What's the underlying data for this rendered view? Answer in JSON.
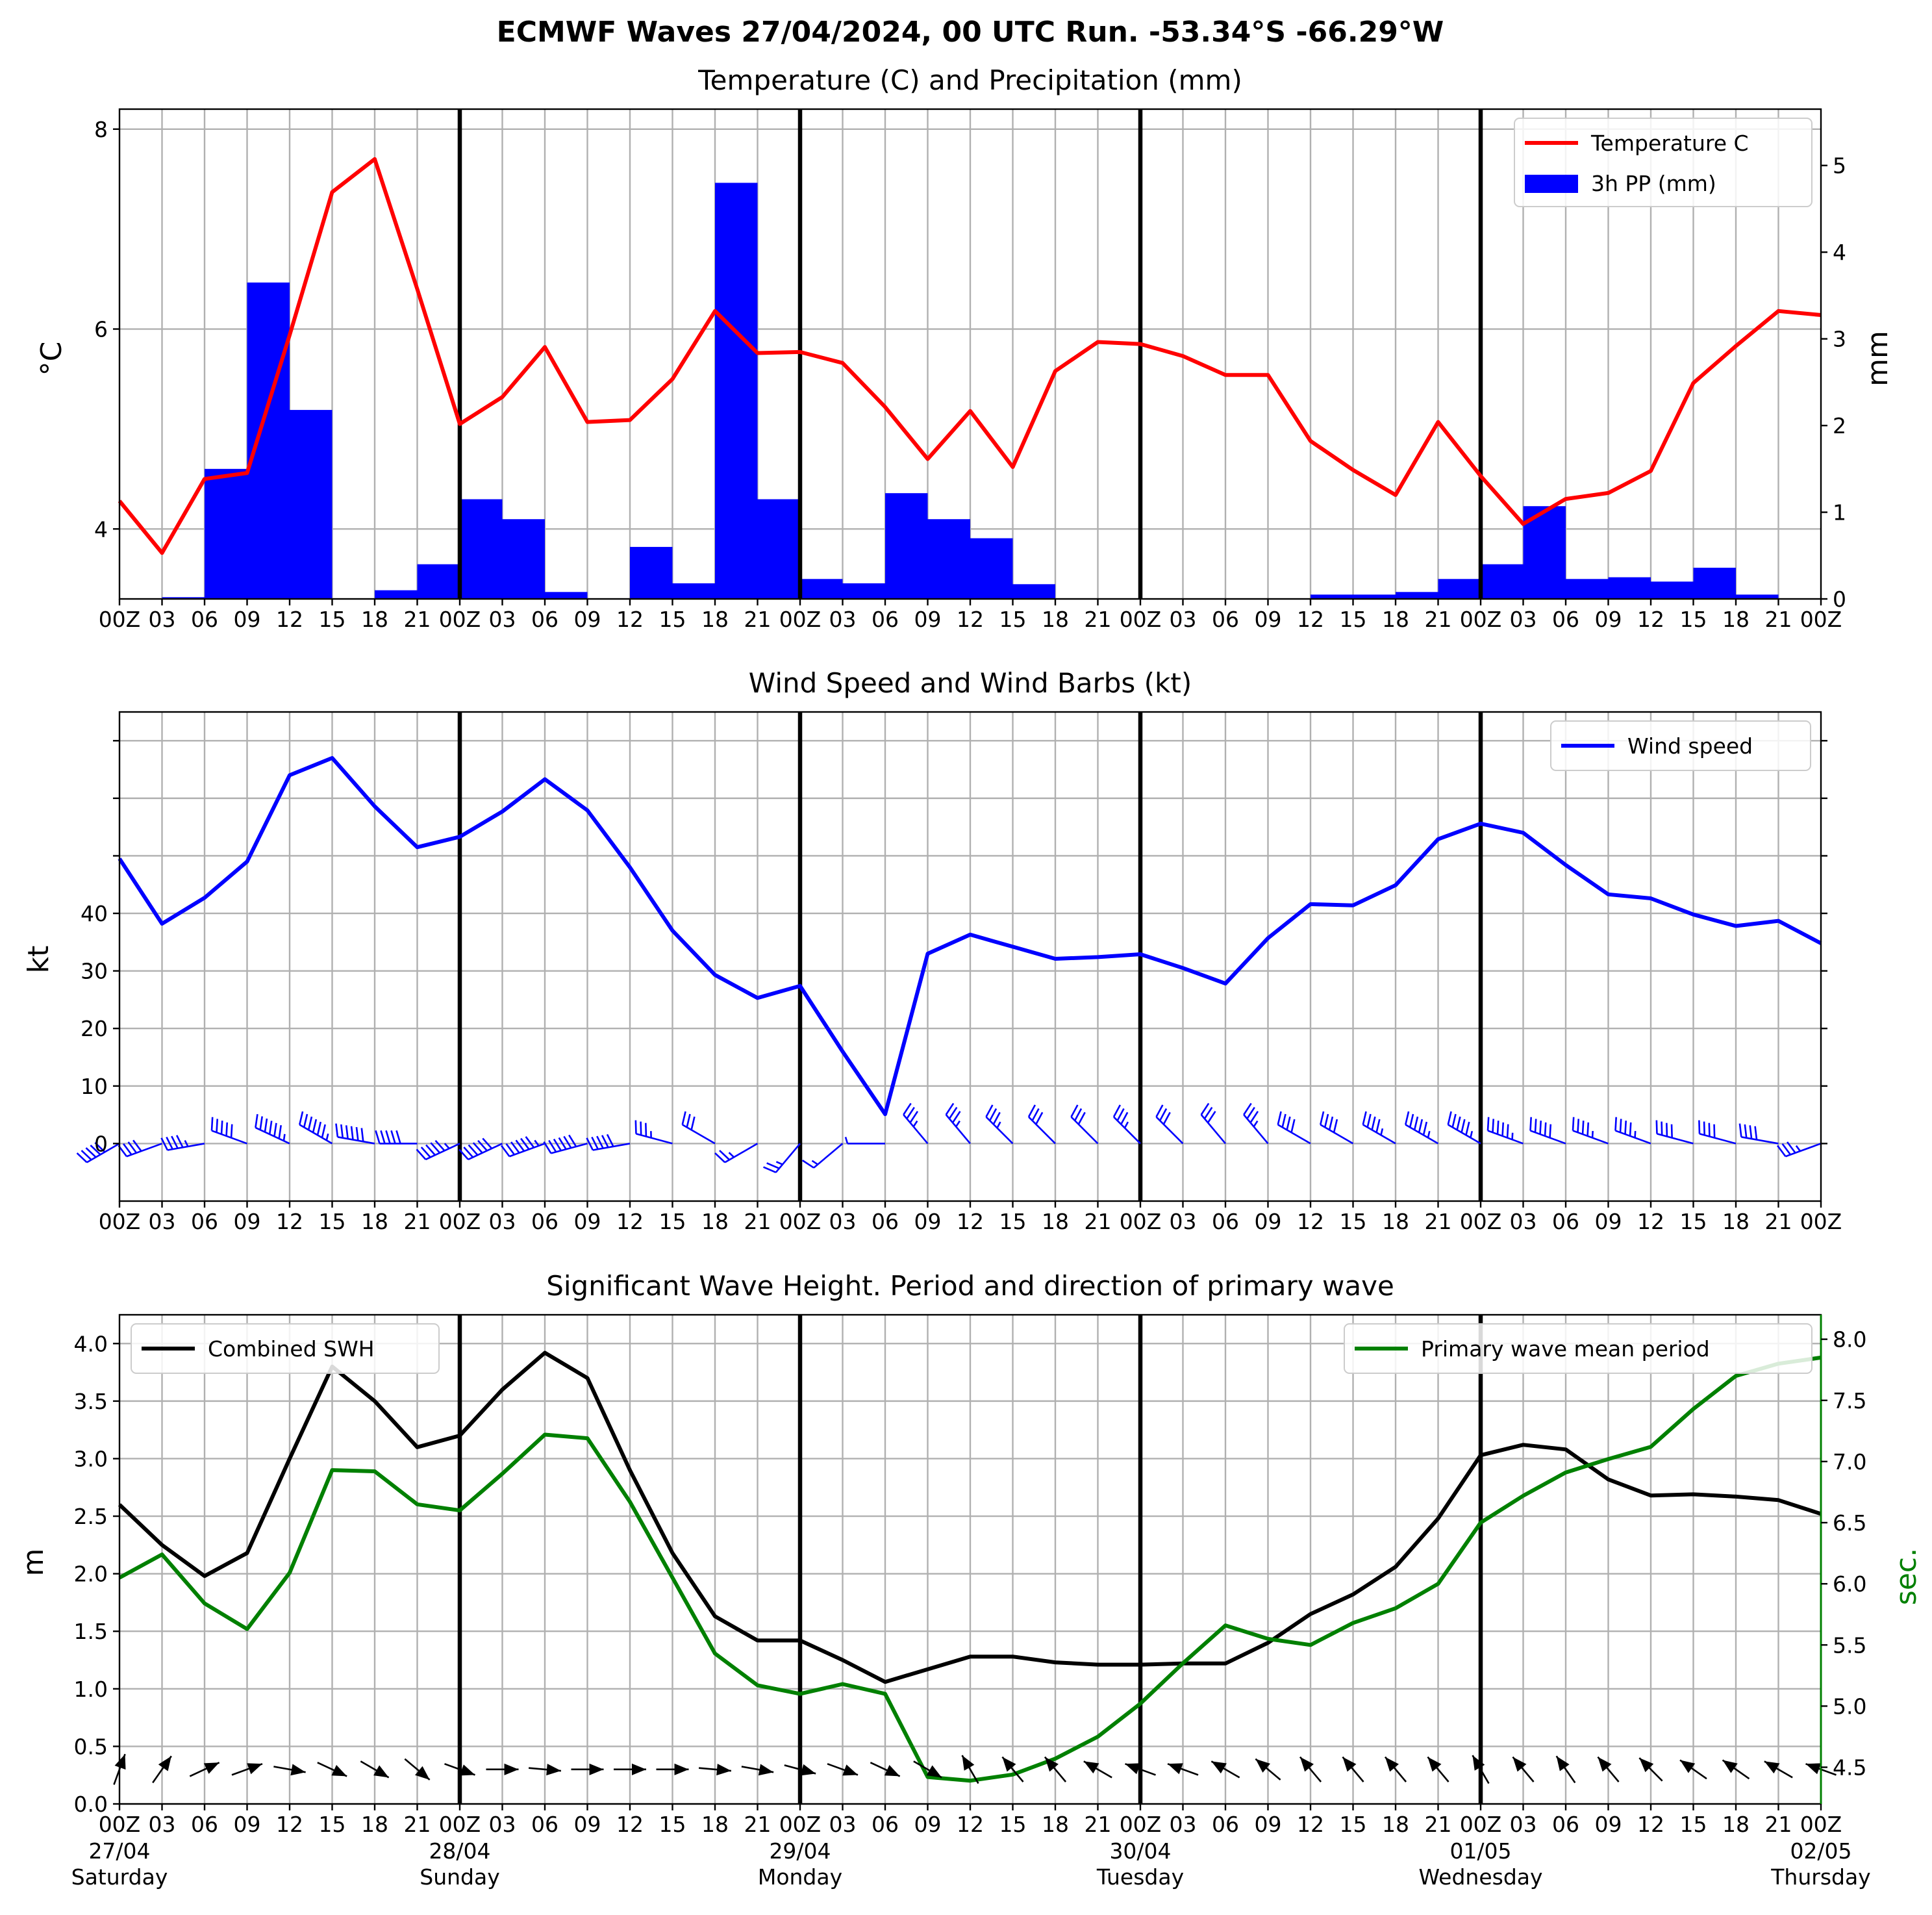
{
  "title": "ECMWF Waves 27/04/2024, 00 UTC Run. -53.34°S -66.29°W",
  "x_hour_ticks": [
    "00Z",
    "03",
    "06",
    "09",
    "12",
    "15",
    "18",
    "21",
    "00Z",
    "03",
    "06",
    "09",
    "12",
    "15",
    "18",
    "21",
    "00Z",
    "03",
    "06",
    "09",
    "12",
    "15",
    "18",
    "21",
    "00Z",
    "03",
    "06",
    "09",
    "12",
    "15",
    "18",
    "21",
    "00Z",
    "03",
    "06",
    "09",
    "12",
    "15",
    "18",
    "21",
    "00Z"
  ],
  "x_date_ticks": [
    {
      "index": 0,
      "date": "27/04",
      "day": "Saturday"
    },
    {
      "index": 8,
      "date": "28/04",
      "day": "Sunday"
    },
    {
      "index": 16,
      "date": "29/04",
      "day": "Monday"
    },
    {
      "index": 24,
      "date": "30/04",
      "day": "Tuesday"
    },
    {
      "index": 32,
      "date": "01/05",
      "day": "Wednesday"
    },
    {
      "index": 40,
      "date": "02/05",
      "day": "Thursday"
    }
  ],
  "colors": {
    "temperature": "#ff0000",
    "precip": "#0000ff",
    "wind": "#0000ff",
    "swh": "#000000",
    "period": "#008000",
    "barb": "#0000ff",
    "arrow": "#000000"
  },
  "chart_data": [
    {
      "type": "line+bar",
      "title": "Temperature (C) and Precipitation (mm)",
      "ylabel": "$^\\circ$C",
      "ylabel_right": "mm",
      "ylim": [
        3.3,
        8.2
      ],
      "ylim_right": [
        0,
        5.65
      ],
      "yticks": [
        4,
        6,
        8
      ],
      "yticks_right": [
        0,
        1,
        2,
        3,
        4,
        5
      ],
      "legend": "top-right",
      "grid": true,
      "series": [
        {
          "name": "Temperature C",
          "kind": "line",
          "axis": "left",
          "values": [
            4.28,
            3.76,
            4.5,
            4.56,
            5.94,
            7.37,
            7.7,
            6.4,
            5.05,
            5.32,
            5.82,
            5.07,
            5.09,
            5.5,
            6.18,
            5.76,
            5.77,
            5.66,
            5.22,
            4.7,
            5.18,
            4.62,
            5.58,
            5.87,
            5.85,
            5.73,
            5.54,
            5.54,
            4.88,
            4.59,
            4.34,
            5.07,
            4.53,
            4.05,
            4.3,
            4.36,
            4.58,
            5.46,
            5.83,
            6.18,
            6.14
          ]
        },
        {
          "name": "3h PP (mm)",
          "kind": "bar",
          "axis": "right",
          "values": [
            0.0,
            0.02,
            1.5,
            3.65,
            2.18,
            0.0,
            0.1,
            0.4,
            1.15,
            0.92,
            0.08,
            0.0,
            0.6,
            0.18,
            4.8,
            1.15,
            0.23,
            0.18,
            1.22,
            0.92,
            0.7,
            0.17,
            0.0,
            0.0,
            0.0,
            0.0,
            0.0,
            0.0,
            0.05,
            0.05,
            0.08,
            0.23,
            0.4,
            1.07,
            0.23,
            0.25,
            0.2,
            0.36,
            0.05,
            0.0
          ]
        }
      ]
    },
    {
      "type": "line",
      "title": "Wind Speed and Wind Barbs (kt)",
      "ylabel": "kt",
      "ylim": [
        -10,
        75
      ],
      "yticks": [
        0,
        10,
        20,
        30,
        40
      ],
      "legend": "top-right",
      "grid": true,
      "series": [
        {
          "name": "Wind speed",
          "values": [
            49.5,
            38.2,
            42.7,
            49,
            64,
            67,
            58.6,
            51.5,
            53.3,
            57.7,
            63.3,
            57.9,
            48,
            37,
            29.3,
            25.3,
            27.4,
            16,
            5.1,
            33,
            36.3,
            34.2,
            32.1,
            32.4,
            32.9,
            30.5,
            27.8,
            35.7,
            41.6,
            41.4,
            44.9,
            52.9,
            55.6,
            54,
            48.4,
            43.3,
            42.6,
            39.8,
            37.8,
            38.7,
            34.8
          ]
        }
      ],
      "barbs": {
        "direction_deg": [
          240,
          250,
          260,
          290,
          295,
          300,
          280,
          270,
          245,
          245,
          250,
          255,
          260,
          285,
          300,
          240,
          220,
          230,
          270,
          320,
          320,
          315,
          315,
          315,
          315,
          315,
          320,
          320,
          300,
          300,
          300,
          300,
          300,
          290,
          290,
          290,
          290,
          285,
          285,
          280,
          250
        ]
      }
    },
    {
      "type": "line",
      "title": "Significant Wave Height. Period and direction of primary wave",
      "ylabel": "m",
      "ylabel_right": "sec.",
      "ylim": [
        0,
        4.25
      ],
      "ylim_right": [
        4.2,
        8.2
      ],
      "yticks": [
        0.0,
        0.5,
        1.0,
        1.5,
        2.0,
        2.5,
        3.0,
        3.5,
        4.0
      ],
      "yticks_right": [
        4.5,
        5.0,
        5.5,
        6.0,
        6.5,
        7.0,
        7.5,
        8.0
      ],
      "grid": true,
      "series": [
        {
          "name": "Combined SWH",
          "axis": "left",
          "legend": "top-left",
          "values": [
            2.6,
            2.25,
            1.98,
            2.18,
            3.0,
            3.8,
            3.5,
            3.1,
            3.2,
            3.6,
            3.92,
            3.7,
            2.9,
            2.18,
            1.63,
            1.42,
            1.42,
            1.25,
            1.06,
            1.17,
            1.28,
            1.28,
            1.23,
            1.21,
            1.21,
            1.22,
            1.22,
            1.4,
            1.65,
            1.82,
            2.06,
            2.48,
            3.03,
            3.12,
            3.08,
            2.82,
            2.68,
            2.69,
            2.67,
            2.64,
            2.52
          ]
        },
        {
          "name": "Primary wave mean period",
          "axis": "right",
          "legend": "top-right",
          "values": [
            6.05,
            6.24,
            5.84,
            5.63,
            6.09,
            6.93,
            6.92,
            6.65,
            6.6,
            6.9,
            7.22,
            7.19,
            6.67,
            6.05,
            5.43,
            5.17,
            5.1,
            5.18,
            5.1,
            4.42,
            4.39,
            4.44,
            4.57,
            4.75,
            5.02,
            5.35,
            5.66,
            5.55,
            5.5,
            5.68,
            5.8,
            6.0,
            6.5,
            6.72,
            6.91,
            7.02,
            7.12,
            7.43,
            7.7,
            7.8,
            7.85
          ]
        }
      ],
      "wave_direction_deg": [
        20,
        35,
        65,
        70,
        100,
        115,
        120,
        130,
        110,
        90,
        95,
        90,
        90,
        90,
        95,
        100,
        105,
        110,
        115,
        120,
        330,
        320,
        320,
        300,
        290,
        290,
        300,
        310,
        320,
        320,
        320,
        320,
        330,
        320,
        325,
        320,
        315,
        305,
        305,
        300,
        290
      ]
    }
  ]
}
